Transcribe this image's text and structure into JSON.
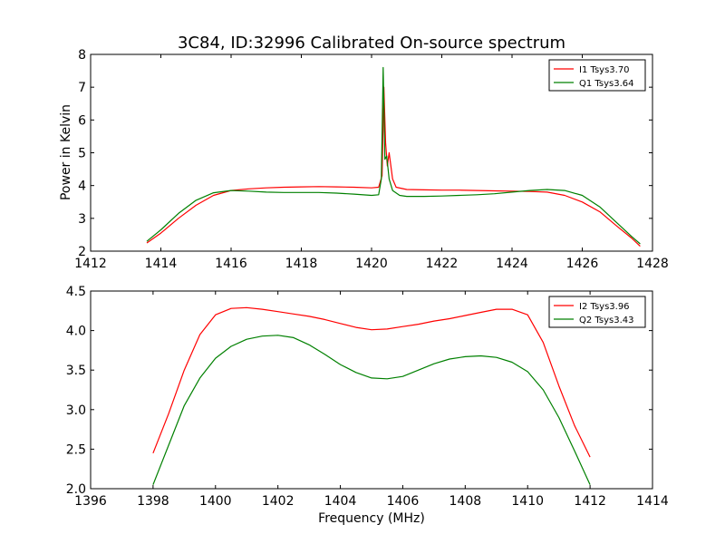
{
  "chart_data": [
    {
      "type": "line",
      "title": "3C84, ID:32996 Calibrated On-source spectrum",
      "xlabel": "",
      "ylabel": "Power in Kelvin",
      "xlim": [
        1412,
        1428
      ],
      "ylim": [
        2,
        8
      ],
      "xticks": [
        "1412",
        "1414",
        "1416",
        "1418",
        "1420",
        "1422",
        "1424",
        "1426",
        "1428"
      ],
      "yticks": [
        "2",
        "3",
        "4",
        "5",
        "6",
        "7",
        "8"
      ],
      "grid": false,
      "legend": "top-right",
      "series": [
        {
          "name": "I1 Tsys3.70",
          "color": "#ff0000",
          "x": [
            1413.6,
            1414.0,
            1414.5,
            1415.0,
            1415.5,
            1416.0,
            1416.5,
            1417.0,
            1417.5,
            1418.0,
            1418.5,
            1419.0,
            1419.5,
            1420.0,
            1420.2,
            1420.3,
            1420.35,
            1420.4,
            1420.45,
            1420.5,
            1420.55,
            1420.6,
            1420.7,
            1421.0,
            1421.5,
            1422.0,
            1422.5,
            1423.0,
            1423.5,
            1424.0,
            1424.5,
            1425.0,
            1425.5,
            1426.0,
            1426.5,
            1427.0,
            1427.4,
            1427.65
          ],
          "y": [
            2.25,
            2.55,
            3.0,
            3.4,
            3.7,
            3.85,
            3.9,
            3.93,
            3.95,
            3.96,
            3.97,
            3.96,
            3.95,
            3.93,
            3.95,
            4.3,
            7.0,
            5.3,
            4.6,
            5.0,
            4.6,
            4.2,
            3.95,
            3.88,
            3.87,
            3.86,
            3.86,
            3.85,
            3.84,
            3.83,
            3.82,
            3.8,
            3.7,
            3.5,
            3.2,
            2.75,
            2.4,
            2.15
          ]
        },
        {
          "name": "Q1 Tsys3.64",
          "color": "#008000",
          "x": [
            1413.6,
            1414.0,
            1414.5,
            1415.0,
            1415.5,
            1416.0,
            1416.5,
            1417.0,
            1417.5,
            1418.0,
            1418.5,
            1419.0,
            1419.5,
            1420.0,
            1420.2,
            1420.28,
            1420.33,
            1420.38,
            1420.43,
            1420.5,
            1420.6,
            1420.8,
            1421.0,
            1421.5,
            1422.0,
            1422.5,
            1423.0,
            1423.5,
            1424.0,
            1424.5,
            1425.0,
            1425.5,
            1426.0,
            1426.5,
            1427.0,
            1427.4,
            1427.65
          ],
          "y": [
            2.3,
            2.65,
            3.15,
            3.55,
            3.78,
            3.85,
            3.83,
            3.8,
            3.79,
            3.79,
            3.79,
            3.77,
            3.74,
            3.7,
            3.72,
            4.2,
            7.6,
            4.8,
            4.9,
            4.2,
            3.85,
            3.7,
            3.67,
            3.67,
            3.68,
            3.7,
            3.72,
            3.75,
            3.8,
            3.85,
            3.88,
            3.85,
            3.7,
            3.35,
            2.85,
            2.45,
            2.22
          ]
        }
      ]
    },
    {
      "type": "line",
      "title": "",
      "xlabel": "Frequency (MHz)",
      "ylabel": "",
      "xlim": [
        1396,
        1414
      ],
      "ylim": [
        2.0,
        4.5
      ],
      "xticks": [
        "1396",
        "1398",
        "1400",
        "1402",
        "1404",
        "1406",
        "1408",
        "1410",
        "1412",
        "1414"
      ],
      "yticks": [
        "2.0",
        "2.5",
        "3.0",
        "3.5",
        "4.0",
        "4.5"
      ],
      "grid": false,
      "legend": "top-right",
      "series": [
        {
          "name": "I2 Tsys3.96",
          "color": "#ff0000",
          "x": [
            1398.0,
            1398.5,
            1399.0,
            1399.5,
            1400.0,
            1400.5,
            1401.0,
            1401.5,
            1402.0,
            1402.5,
            1403.0,
            1403.5,
            1404.0,
            1404.5,
            1405.0,
            1405.5,
            1406.0,
            1406.5,
            1407.0,
            1407.5,
            1408.0,
            1408.5,
            1409.0,
            1409.5,
            1410.0,
            1410.5,
            1411.0,
            1411.5,
            1412.0
          ],
          "y": [
            2.45,
            2.95,
            3.5,
            3.95,
            4.2,
            4.28,
            4.29,
            4.27,
            4.24,
            4.21,
            4.18,
            4.14,
            4.09,
            4.04,
            4.01,
            4.02,
            4.05,
            4.08,
            4.12,
            4.15,
            4.19,
            4.23,
            4.27,
            4.27,
            4.2,
            3.85,
            3.3,
            2.8,
            2.4
          ]
        },
        {
          "name": "Q2 Tsys3.43",
          "color": "#008000",
          "x": [
            1398.0,
            1398.5,
            1399.0,
            1399.5,
            1400.0,
            1400.5,
            1401.0,
            1401.5,
            1402.0,
            1402.5,
            1403.0,
            1403.5,
            1404.0,
            1404.5,
            1405.0,
            1405.5,
            1406.0,
            1406.5,
            1407.0,
            1407.5,
            1408.0,
            1408.5,
            1409.0,
            1409.5,
            1410.0,
            1410.5,
            1411.0,
            1411.5,
            1412.0
          ],
          "y": [
            2.05,
            2.55,
            3.05,
            3.4,
            3.65,
            3.8,
            3.89,
            3.93,
            3.94,
            3.91,
            3.82,
            3.7,
            3.57,
            3.47,
            3.4,
            3.39,
            3.42,
            3.5,
            3.58,
            3.64,
            3.67,
            3.68,
            3.66,
            3.6,
            3.48,
            3.25,
            2.9,
            2.48,
            2.05
          ]
        }
      ]
    }
  ]
}
